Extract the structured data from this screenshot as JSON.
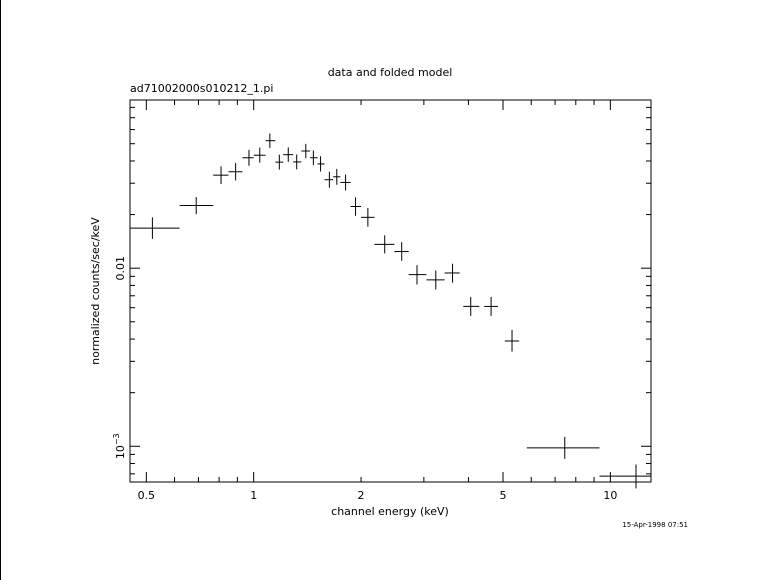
{
  "chart_data": {
    "type": "scatter",
    "title": "data and folded model",
    "subtitle": "ad71002000s010212_1.pi",
    "xlabel": "channel energy (keV)",
    "ylabel": "normalized counts/sec/keV",
    "xscale": "log",
    "yscale": "log",
    "xlim": [
      0.45,
      13
    ],
    "ylim": [
      0.00063,
      0.088
    ],
    "x_ticks": [
      {
        "value": 0.5,
        "label": "0.5"
      },
      {
        "value": 1,
        "label": "1"
      },
      {
        "value": 2,
        "label": "2"
      },
      {
        "value": 5,
        "label": "5"
      },
      {
        "value": 10,
        "label": "10"
      }
    ],
    "y_ticks": [
      {
        "value": 0.01,
        "label": "0.01"
      },
      {
        "value": 0.001,
        "label": "10",
        "exponent": "−3"
      }
    ],
    "timestamp": "15-Apr-1998 07:51",
    "points": [
      {
        "x": 0.52,
        "xlo": 0.45,
        "xhi": 0.62,
        "y": 0.0168,
        "ylo": 0.0146,
        "yhi": 0.0193
      },
      {
        "x": 0.69,
        "xlo": 0.62,
        "xhi": 0.77,
        "y": 0.0225,
        "ylo": 0.0201,
        "yhi": 0.0251
      },
      {
        "x": 0.81,
        "xlo": 0.77,
        "xhi": 0.85,
        "y": 0.0333,
        "ylo": 0.0297,
        "yhi": 0.0373
      },
      {
        "x": 0.89,
        "xlo": 0.85,
        "xhi": 0.93,
        "y": 0.0348,
        "ylo": 0.0311,
        "yhi": 0.039
      },
      {
        "x": 0.97,
        "xlo": 0.93,
        "xhi": 1.0,
        "y": 0.0417,
        "ylo": 0.0376,
        "yhi": 0.0462
      },
      {
        "x": 1.04,
        "xlo": 1.0,
        "xhi": 1.08,
        "y": 0.0431,
        "ylo": 0.0391,
        "yhi": 0.0476
      },
      {
        "x": 1.11,
        "xlo": 1.08,
        "xhi": 1.15,
        "y": 0.052,
        "ylo": 0.0474,
        "yhi": 0.0571
      },
      {
        "x": 1.18,
        "xlo": 1.15,
        "xhi": 1.21,
        "y": 0.0394,
        "ylo": 0.0358,
        "yhi": 0.0434
      },
      {
        "x": 1.25,
        "xlo": 1.21,
        "xhi": 1.29,
        "y": 0.0434,
        "ylo": 0.0395,
        "yhi": 0.0477
      },
      {
        "x": 1.32,
        "xlo": 1.29,
        "xhi": 1.36,
        "y": 0.0395,
        "ylo": 0.0359,
        "yhi": 0.0435
      },
      {
        "x": 1.4,
        "xlo": 1.36,
        "xhi": 1.44,
        "y": 0.0455,
        "ylo": 0.0415,
        "yhi": 0.0499
      },
      {
        "x": 1.47,
        "xlo": 1.44,
        "xhi": 1.51,
        "y": 0.0417,
        "ylo": 0.038,
        "yhi": 0.0458
      },
      {
        "x": 1.54,
        "xlo": 1.51,
        "xhi": 1.58,
        "y": 0.0385,
        "ylo": 0.0349,
        "yhi": 0.0425
      },
      {
        "x": 1.63,
        "xlo": 1.58,
        "xhi": 1.67,
        "y": 0.0314,
        "ylo": 0.0283,
        "yhi": 0.0348
      },
      {
        "x": 1.71,
        "xlo": 1.67,
        "xhi": 1.75,
        "y": 0.0326,
        "ylo": 0.0294,
        "yhi": 0.0361
      },
      {
        "x": 1.81,
        "xlo": 1.75,
        "xhi": 1.87,
        "y": 0.0303,
        "ylo": 0.0273,
        "yhi": 0.0336
      },
      {
        "x": 1.93,
        "xlo": 1.87,
        "xhi": 2.0,
        "y": 0.0222,
        "ylo": 0.0197,
        "yhi": 0.025
      },
      {
        "x": 2.09,
        "xlo": 2.0,
        "xhi": 2.18,
        "y": 0.0193,
        "ylo": 0.0171,
        "yhi": 0.0218
      },
      {
        "x": 2.33,
        "xlo": 2.18,
        "xhi": 2.48,
        "y": 0.0136,
        "ylo": 0.0121,
        "yhi": 0.0153
      },
      {
        "x": 2.6,
        "xlo": 2.48,
        "xhi": 2.72,
        "y": 0.0124,
        "ylo": 0.011,
        "yhi": 0.014
      },
      {
        "x": 2.87,
        "xlo": 2.72,
        "xhi": 3.05,
        "y": 0.0092,
        "ylo": 0.0081,
        "yhi": 0.0104
      },
      {
        "x": 3.24,
        "xlo": 3.05,
        "xhi": 3.43,
        "y": 0.0086,
        "ylo": 0.0076,
        "yhi": 0.0097
      },
      {
        "x": 3.61,
        "xlo": 3.43,
        "xhi": 3.78,
        "y": 0.0094,
        "ylo": 0.0083,
        "yhi": 0.0106
      },
      {
        "x": 4.06,
        "xlo": 3.87,
        "xhi": 4.29,
        "y": 0.0061,
        "ylo": 0.0054,
        "yhi": 0.0069
      },
      {
        "x": 4.63,
        "xlo": 4.43,
        "xhi": 4.84,
        "y": 0.0061,
        "ylo": 0.0054,
        "yhi": 0.0069
      },
      {
        "x": 5.3,
        "xlo": 5.06,
        "xhi": 5.55,
        "y": 0.0039,
        "ylo": 0.0034,
        "yhi": 0.0045
      },
      {
        "x": 7.45,
        "xlo": 5.83,
        "xhi": 9.32,
        "y": 0.00098,
        "ylo": 0.00085,
        "yhi": 0.00113
      },
      {
        "x": 11.8,
        "xlo": 9.32,
        "xhi": 13.0,
        "y": 0.00068,
        "ylo": 0.00058,
        "yhi": 0.00079
      }
    ]
  }
}
